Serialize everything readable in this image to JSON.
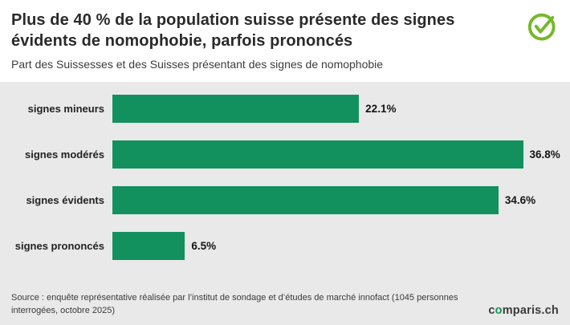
{
  "chart_data": {
    "type": "bar",
    "orientation": "horizontal",
    "title": "Plus de 40 % de la population suisse présente des signes évidents de nomophobie, parfois prononcés",
    "subtitle": "Part des Suissesses et des Suisses présentant des signes de nomophobie",
    "categories": [
      "signes mineurs",
      "signes modérés",
      "signes évidents",
      "signes prononcés"
    ],
    "values": [
      22.1,
      36.8,
      34.6,
      6.5
    ],
    "value_labels": [
      "22.1%",
      "36.8%",
      "34.6%",
      "6.5%"
    ],
    "xlim": [
      0,
      40
    ],
    "grid": false,
    "legend": false,
    "bar_color": "#12915f"
  },
  "icons": {
    "checkmark_icon": "check-circle",
    "checkmark_color": "#76b82a"
  },
  "footer": {
    "source": "Source : enquête représentative réalisée par l’institut de sondage et d’études de marché innofact (1045 personnes interrogées, octobre 2025)",
    "brand_prefix": "c",
    "brand_o": "o",
    "brand_suffix": "mparis.ch"
  }
}
